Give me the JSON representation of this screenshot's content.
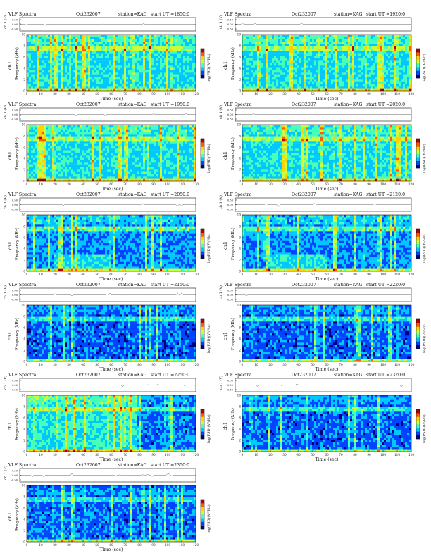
{
  "page": {
    "title": "VLF Spectra"
  },
  "common": {
    "header_title": "VLF Spectra",
    "time_label": "Time (sec)",
    "freq_label": "Frequency (kHz)",
    "channel_label": "ch1",
    "ch_axis_label": "ch 1 (V)",
    "colorbar_label": "log(PSD)(V²/Hz)",
    "ch_ticks": [
      "0.50",
      "0.00",
      "-0.50"
    ],
    "freq_ticks": [
      "0",
      "2",
      "4",
      "6",
      "8",
      "10"
    ],
    "time_ticks": [
      "0",
      "10",
      "20",
      "30",
      "40",
      "50",
      "60",
      "70",
      "80",
      "90",
      "100",
      "110",
      "120"
    ]
  },
  "panels": [
    {
      "date": "Oct232007",
      "station": "station=KAG",
      "start": "start UT =1850:0",
      "style": "a"
    },
    {
      "date": "Oct232007",
      "station": "station=KAG",
      "start": "start UT =1920:0",
      "style": "a"
    },
    {
      "date": "Oct232007",
      "station": "station=KAG",
      "start": "start UT =1950:0",
      "style": "a"
    },
    {
      "date": "Oct232007",
      "station": "station=KAG",
      "start": "start UT =2020:0",
      "style": "a"
    },
    {
      "date": "Oct232007",
      "station": "station=KAG",
      "start": "start UT =2050:0",
      "style": "b"
    },
    {
      "date": "Oct232007",
      "station": "station=KAG",
      "start": "start UT =2120:0",
      "style": "b"
    },
    {
      "date": "Oct232007",
      "station": "station=KAG",
      "start": "start UT =2150:0",
      "style": "c"
    },
    {
      "date": "Oct232007",
      "station": "station=KAG",
      "start": "start UT =2220:0",
      "style": "c"
    },
    {
      "date": "Oct232007",
      "station": "station=KAG",
      "start": "start UT =2250:0",
      "style": "d"
    },
    {
      "date": "Oct232007",
      "station": "station=KAG",
      "start": "start UT =2320:0",
      "style": "e"
    },
    {
      "date": "Oct232007",
      "station": "station=KAG",
      "start": "start UT =2350:0",
      "style": "f"
    }
  ],
  "chart_data": {
    "type": "heatmap",
    "title": "VLF Spectra",
    "xlabel": "Time (sec)",
    "ylabel": "Frequency (kHz)",
    "xlim": [
      0,
      120
    ],
    "ylim": [
      0,
      10
    ],
    "waveform_ylabel": "ch 1 (V)",
    "waveform_ylim": [
      -0.5,
      0.5
    ],
    "colorbar_label": "log(PSD)(V²/Hz)",
    "colormap": [
      "#00007f",
      "#0044ff",
      "#00c8ff",
      "#46ffb8",
      "#c8ff3c",
      "#ffd200",
      "#ff5a00",
      "#b40000"
    ],
    "panels": [
      {
        "start_ut": "1850:0",
        "date": "Oct232007",
        "station": "KAG"
      },
      {
        "start_ut": "1920:0",
        "date": "Oct232007",
        "station": "KAG"
      },
      {
        "start_ut": "1950:0",
        "date": "Oct232007",
        "station": "KAG"
      },
      {
        "start_ut": "2020:0",
        "date": "Oct232007",
        "station": "KAG"
      },
      {
        "start_ut": "2050:0",
        "date": "Oct232007",
        "station": "KAG"
      },
      {
        "start_ut": "2120:0",
        "date": "Oct232007",
        "station": "KAG"
      },
      {
        "start_ut": "2150:0",
        "date": "Oct232007",
        "station": "KAG"
      },
      {
        "start_ut": "2220:0",
        "date": "Oct232007",
        "station": "KAG"
      },
      {
        "start_ut": "2250:0",
        "date": "Oct232007",
        "station": "KAG"
      },
      {
        "start_ut": "2320:0",
        "date": "Oct232007",
        "station": "KAG"
      },
      {
        "start_ut": "2350:0",
        "date": "Oct232007",
        "station": "KAG"
      }
    ]
  }
}
